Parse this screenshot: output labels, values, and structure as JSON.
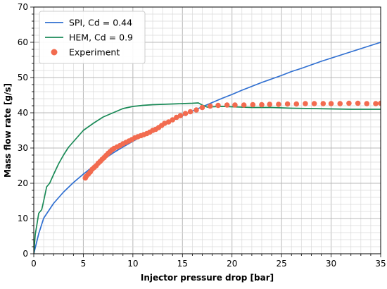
{
  "chart_data": {
    "type": "line",
    "xlabel": "Injector pressure drop [bar]",
    "ylabel": "Mass flow rate [g/s]",
    "xlim": [
      0,
      35
    ],
    "ylim": [
      0,
      70
    ],
    "x_ticks": [
      0,
      5,
      10,
      15,
      20,
      25,
      30,
      35
    ],
    "y_ticks": [
      0,
      10,
      20,
      30,
      40,
      50,
      60,
      70
    ],
    "x_tick_labels": [
      "0",
      "5",
      "10",
      "15",
      "20",
      "25",
      "30",
      "35"
    ],
    "y_tick_labels": [
      "0",
      "10",
      "20",
      "30",
      "40",
      "50",
      "60",
      "70"
    ],
    "grid": true,
    "minor_grid": true,
    "legend_position": "top-left",
    "series": [
      {
        "name": "SPI, Cd = 0.44",
        "kind": "line",
        "color": "#2f6fd1",
        "x": [
          0,
          0.5,
          1,
          2,
          3,
          4,
          5,
          6,
          7,
          8,
          9,
          10,
          11,
          12,
          13,
          14,
          15,
          16,
          17,
          18,
          19,
          20,
          21,
          22,
          23,
          24,
          25,
          26,
          27,
          28,
          29,
          30,
          31,
          32,
          33,
          34,
          35
        ],
        "y": [
          0,
          5.7,
          10.1,
          14.3,
          17.5,
          20.2,
          22.6,
          24.8,
          26.7,
          28.6,
          30.3,
          31.9,
          33.5,
          35.0,
          36.4,
          37.8,
          39.2,
          40.5,
          41.7,
          42.9,
          44.1,
          45.2,
          46.4,
          47.5,
          48.6,
          49.6,
          50.6,
          51.7,
          52.6,
          53.6,
          54.6,
          55.5,
          56.4,
          57.3,
          58.2,
          59.1,
          60.0
        ]
      },
      {
        "name": "HEM, Cd = 0.9",
        "kind": "line",
        "color": "#1a8a57",
        "x": [
          0,
          0.15,
          0.3,
          0.5,
          0.8,
          1.0,
          1.3,
          1.6,
          2.0,
          2.5,
          3.0,
          3.5,
          4.0,
          5.0,
          6.0,
          7.0,
          8.0,
          9.0,
          10.0,
          11.0,
          12.0,
          13.0,
          14.0,
          15.0,
          16.0,
          16.6,
          17.0,
          17.5,
          18.0,
          19.0,
          20.0,
          22.0,
          24.0,
          26.0,
          28.0,
          30.0,
          32.0,
          35.0
        ],
        "y": [
          0,
          5.5,
          8.0,
          11.5,
          12.5,
          15.0,
          19.0,
          20.0,
          22.5,
          25.5,
          28.0,
          30.2,
          31.8,
          35.0,
          37.0,
          38.8,
          40.0,
          41.2,
          41.8,
          42.1,
          42.3,
          42.4,
          42.5,
          42.6,
          42.7,
          42.8,
          42.2,
          41.6,
          41.7,
          41.8,
          41.7,
          41.5,
          41.5,
          41.3,
          41.2,
          41.1,
          41.0,
          41.0
        ]
      },
      {
        "name": "Experiment",
        "kind": "scatter",
        "color": "#f26b4f",
        "x": [
          5.2,
          5.3,
          5.5,
          5.7,
          5.9,
          6.1,
          6.3,
          6.5,
          6.7,
          6.9,
          7.1,
          7.3,
          7.5,
          7.7,
          7.9,
          8.1,
          8.4,
          8.7,
          9.0,
          9.3,
          9.6,
          9.9,
          10.2,
          10.5,
          10.8,
          11.1,
          11.4,
          11.7,
          12.0,
          12.3,
          12.6,
          12.9,
          13.2,
          13.6,
          14.0,
          14.4,
          14.8,
          15.3,
          15.8,
          16.4,
          17.0,
          17.8,
          18.6,
          19.5,
          20.3,
          21.2,
          22.1,
          23.0,
          23.8,
          24.7,
          25.6,
          26.5,
          27.4,
          28.3,
          29.2,
          30.0,
          30.9,
          31.8,
          32.7,
          33.6,
          34.5,
          35.0
        ],
        "y": [
          21.5,
          22.0,
          22.6,
          23.2,
          24.0,
          24.5,
          25.0,
          25.7,
          26.2,
          26.8,
          27.3,
          27.9,
          28.5,
          29.0,
          29.5,
          29.9,
          30.3,
          30.7,
          31.2,
          31.6,
          32.0,
          32.4,
          32.9,
          33.2,
          33.5,
          33.8,
          34.1,
          34.5,
          35.0,
          35.3,
          35.8,
          36.4,
          37.0,
          37.4,
          38.0,
          38.7,
          39.2,
          39.8,
          40.3,
          40.8,
          41.5,
          41.9,
          42.1,
          42.2,
          42.2,
          42.2,
          42.3,
          42.3,
          42.4,
          42.4,
          42.5,
          42.5,
          42.6,
          42.6,
          42.6,
          42.6,
          42.6,
          42.7,
          42.7,
          42.6,
          42.6,
          42.7
        ]
      }
    ]
  }
}
